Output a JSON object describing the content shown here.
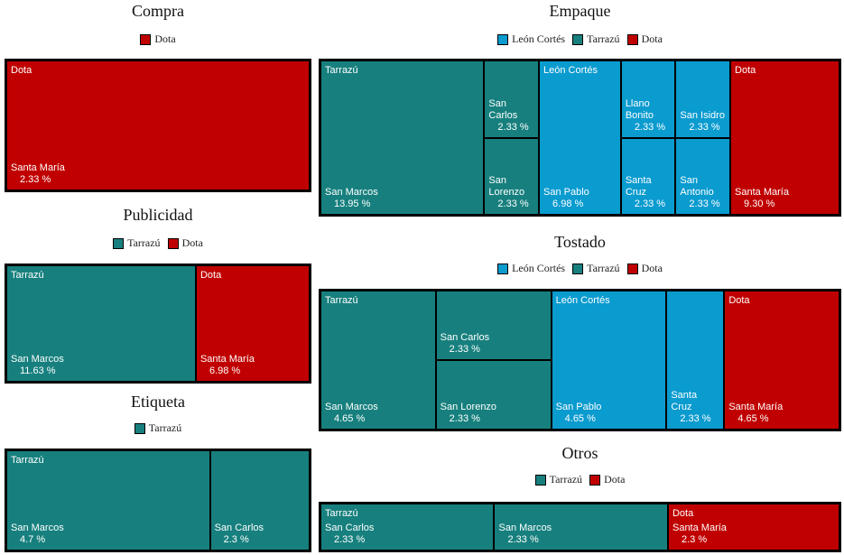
{
  "chart_data": [
    {
      "type": "treemap",
      "title": "Compra",
      "series": [
        {
          "name": "Dota",
          "color": "#c00000",
          "categories": [
            "Santa María"
          ],
          "values": [
            2.33
          ],
          "value_labels": [
            "2.33 %"
          ]
        }
      ]
    },
    {
      "type": "treemap",
      "title": "Publicidad",
      "series": [
        {
          "name": "Tarrazú",
          "color": "#17807e",
          "categories": [
            "San Marcos"
          ],
          "values": [
            11.63
          ],
          "value_labels": [
            "11.63 %"
          ]
        },
        {
          "name": "Dota",
          "color": "#c00000",
          "categories": [
            "Santa María"
          ],
          "values": [
            6.98
          ],
          "value_labels": [
            "6.98 %"
          ]
        }
      ]
    },
    {
      "type": "treemap",
      "title": "Etiqueta",
      "series": [
        {
          "name": "Tarrazú",
          "color": "#17807e",
          "categories": [
            "San Marcos",
            "San Carlos"
          ],
          "values": [
            4.7,
            2.3
          ],
          "value_labels": [
            "4.7 %",
            "2.3 %"
          ]
        }
      ]
    },
    {
      "type": "treemap",
      "title": "Empaque",
      "series": [
        {
          "name": "León Cortés",
          "color": "#0a9bcf",
          "categories": [
            "San Pablo",
            "Llano Bonito",
            "San Isidro",
            "Santa Cruz",
            "San Antonio"
          ],
          "values": [
            6.98,
            2.33,
            2.33,
            2.33,
            2.33
          ],
          "value_labels": [
            "6.98 %",
            "2.33 %",
            "2.33 %",
            "2.33 %",
            "2.33 %"
          ]
        },
        {
          "name": "Tarrazú",
          "color": "#17807e",
          "categories": [
            "San Marcos",
            "San Carlos",
            "San Lorenzo"
          ],
          "values": [
            13.95,
            2.33,
            2.33
          ],
          "value_labels": [
            "13.95 %",
            "2.33 %",
            "2.33 %"
          ]
        },
        {
          "name": "Dota",
          "color": "#c00000",
          "categories": [
            "Santa María"
          ],
          "values": [
            9.3
          ],
          "value_labels": [
            "9.30 %"
          ]
        }
      ]
    },
    {
      "type": "treemap",
      "title": "Tostado",
      "series": [
        {
          "name": "León Cortés",
          "color": "#0a9bcf",
          "categories": [
            "San Pablo",
            "Santa Cruz"
          ],
          "values": [
            4.65,
            2.33
          ],
          "value_labels": [
            "4.65 %",
            "2.33 %"
          ]
        },
        {
          "name": "Tarrazú",
          "color": "#17807e",
          "categories": [
            "San Marcos",
            "San Carlos",
            "San Lorenzo"
          ],
          "values": [
            4.65,
            2.33,
            2.33
          ],
          "value_labels": [
            "4.65 %",
            "2.33 %",
            "2.33 %"
          ]
        },
        {
          "name": "Dota",
          "color": "#c00000",
          "categories": [
            "Santa María"
          ],
          "values": [
            4.65
          ],
          "value_labels": [
            "4.65 %"
          ]
        }
      ]
    },
    {
      "type": "treemap",
      "title": "Otros",
      "series": [
        {
          "name": "Tarrazú",
          "color": "#17807e",
          "categories": [
            "San Carlos",
            "San Marcos"
          ],
          "values": [
            2.33,
            2.33
          ],
          "value_labels": [
            "2.33 %",
            "2.33 %"
          ]
        },
        {
          "name": "Dota",
          "color": "#c00000",
          "categories": [
            "Santa María"
          ],
          "values": [
            2.3
          ],
          "value_labels": [
            "2.3 %"
          ]
        }
      ]
    }
  ]
}
